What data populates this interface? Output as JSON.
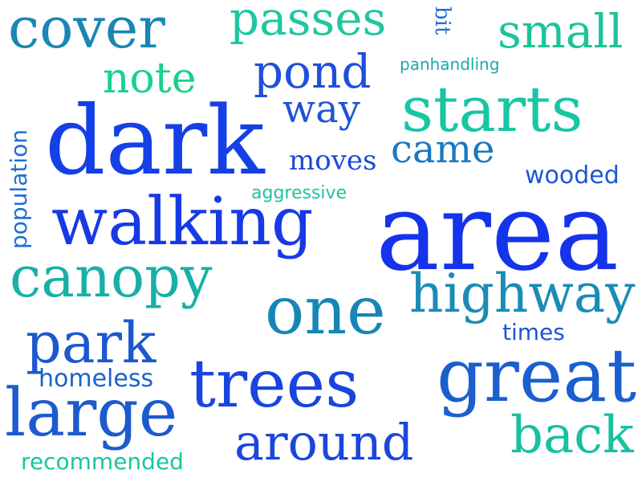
{
  "words": {
    "cover": {
      "text": "cover",
      "color": "#1a86b4"
    },
    "passes": {
      "text": "passes",
      "color": "#1fc7a0"
    },
    "bit": {
      "text": "bit",
      "color": "#1f6fce"
    },
    "small": {
      "text": "small",
      "color": "#1bc49a"
    },
    "note": {
      "text": "note",
      "color": "#17d28a"
    },
    "pond": {
      "text": "pond",
      "color": "#1f4fdc"
    },
    "panhandling": {
      "text": "panhandling",
      "color": "#1aa9b0"
    },
    "dark": {
      "text": "dark",
      "color": "#1440e6"
    },
    "way": {
      "text": "way",
      "color": "#1e52d6"
    },
    "starts": {
      "text": "starts",
      "color": "#17c6a4"
    },
    "population": {
      "text": "population",
      "color": "#1f6fd0"
    },
    "came": {
      "text": "came",
      "color": "#1a78c0"
    },
    "moves": {
      "text": "moves",
      "color": "#1c48d8"
    },
    "wooded": {
      "text": "wooded",
      "color": "#1c58d4"
    },
    "aggressive": {
      "text": "aggressive",
      "color": "#1cc3a0"
    },
    "walking": {
      "text": "walking",
      "color": "#1739e6"
    },
    "area": {
      "text": "area",
      "color": "#1533ea"
    },
    "canopy": {
      "text": "canopy",
      "color": "#18b0a6"
    },
    "one": {
      "text": "one",
      "color": "#1786b6"
    },
    "highway": {
      "text": "highway",
      "color": "#1a8cb6"
    },
    "park": {
      "text": "park",
      "color": "#1c58cf"
    },
    "times": {
      "text": "times",
      "color": "#1d55d6"
    },
    "homeless": {
      "text": "homeless",
      "color": "#1a63c9"
    },
    "trees": {
      "text": "trees",
      "color": "#1945de"
    },
    "great": {
      "text": "great",
      "color": "#1b5fcf"
    },
    "large": {
      "text": "large",
      "color": "#1c5acf"
    },
    "around": {
      "text": "around",
      "color": "#1b46dc"
    },
    "back": {
      "text": "back",
      "color": "#18c0a0"
    },
    "recommended": {
      "text": "recommended",
      "color": "#19c69c"
    }
  }
}
